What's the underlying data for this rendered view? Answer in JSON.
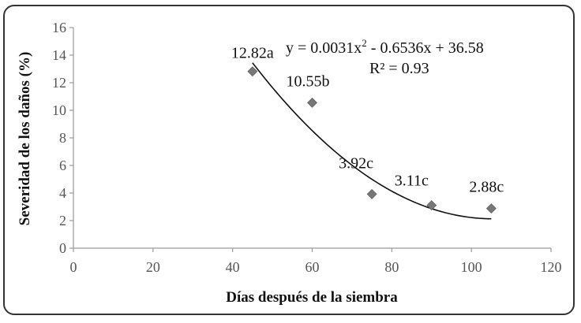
{
  "chart_data": {
    "type": "scatter",
    "title": "",
    "xlabel": "Días después de la siembra",
    "ylabel": "Severidad de los daños (%)",
    "xlim": [
      0,
      120
    ],
    "ylim": [
      0,
      16
    ],
    "x_ticks": [
      0,
      20,
      40,
      60,
      80,
      100,
      120
    ],
    "y_ticks": [
      0,
      2,
      4,
      6,
      8,
      10,
      12,
      14,
      16
    ],
    "grid": false,
    "legend": "none",
    "marker": "diamond",
    "marker_color": "#777777",
    "points": [
      {
        "x": 45,
        "y": 12.82,
        "label": "12.82a"
      },
      {
        "x": 60,
        "y": 10.55,
        "label": "10.55b"
      },
      {
        "x": 75,
        "y": 3.92,
        "label": "3.92c"
      },
      {
        "x": 90,
        "y": 3.11,
        "label": "3.11c"
      },
      {
        "x": 105,
        "y": 2.88,
        "label": "2.88c"
      }
    ],
    "trendline": {
      "type": "polynomial",
      "coefficients": [
        0.0031,
        -0.6536,
        36.58
      ],
      "equation_prefix": "y = 0.0031x",
      "equation_exponent": "2",
      "equation_suffix": " - 0.6536x + 36.58",
      "r_squared_label": "R² = 0.93"
    }
  }
}
